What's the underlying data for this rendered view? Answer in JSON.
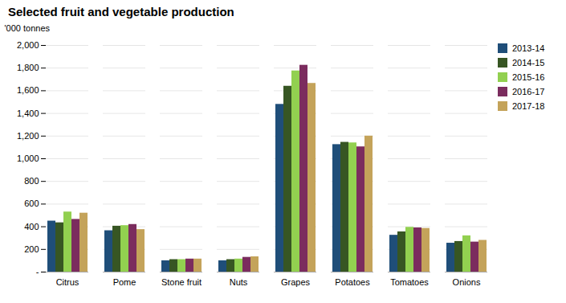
{
  "chart_data": {
    "type": "bar",
    "title": "Selected fruit and vegetable production",
    "ylabel": "'000 tonnes",
    "categories": [
      "Citrus",
      "Pome",
      "Stone fruit",
      "Nuts",
      "Grapes",
      "Potatoes",
      "Tomatoes",
      "Onions"
    ],
    "series": [
      {
        "name": "2013-14",
        "color": "#1F4E79",
        "values": [
          450,
          365,
          100,
          100,
          1480,
          1125,
          325,
          255
        ]
      },
      {
        "name": "2014-15",
        "color": "#375623",
        "values": [
          435,
          405,
          110,
          110,
          1640,
          1145,
          355,
          270
        ]
      },
      {
        "name": "2015-16",
        "color": "#92D050",
        "values": [
          530,
          410,
          110,
          115,
          1775,
          1140,
          395,
          320
        ]
      },
      {
        "name": "2016-17",
        "color": "#7B2C5E",
        "values": [
          465,
          420,
          115,
          130,
          1825,
          1105,
          390,
          265
        ]
      },
      {
        "name": "2017-18",
        "color": "#C4A35A",
        "values": [
          520,
          375,
          115,
          135,
          1665,
          1200,
          385,
          280
        ]
      }
    ],
    "ylim": [
      0,
      2000
    ],
    "yticks": [
      {
        "value": 0,
        "label": "-"
      },
      200,
      400,
      600,
      800,
      {
        "value": 1000,
        "label": "1,000"
      },
      {
        "value": 1200,
        "label": "1,200"
      },
      {
        "value": 1400,
        "label": "1,400"
      },
      {
        "value": 1600,
        "label": "1,600"
      },
      {
        "value": 1800,
        "label": "1,800"
      },
      {
        "value": 2000,
        "label": "2,000"
      }
    ],
    "grid": true,
    "legend": "right"
  }
}
